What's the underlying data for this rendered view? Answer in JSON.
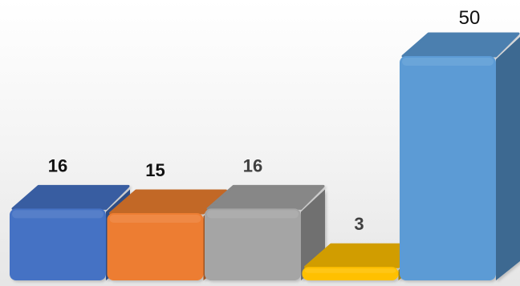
{
  "chart_data": {
    "type": "bar",
    "categories": [
      "",
      "",
      "",
      "",
      ""
    ],
    "values": [
      16,
      15,
      16,
      3,
      50
    ],
    "data_labels": [
      "16",
      "15",
      "16",
      "3",
      "50"
    ],
    "title": "",
    "xlabel": "",
    "ylabel": "",
    "ylim": [
      0,
      50
    ],
    "grid": false,
    "legend": "none",
    "colors": [
      "#4472C4",
      "#ED7D31",
      "#A5A5A5",
      "#FFC000",
      "#5B9BD5"
    ],
    "label_colors": [
      "#111111",
      "#111111",
      "#404040",
      "#404040",
      "#111111"
    ]
  }
}
